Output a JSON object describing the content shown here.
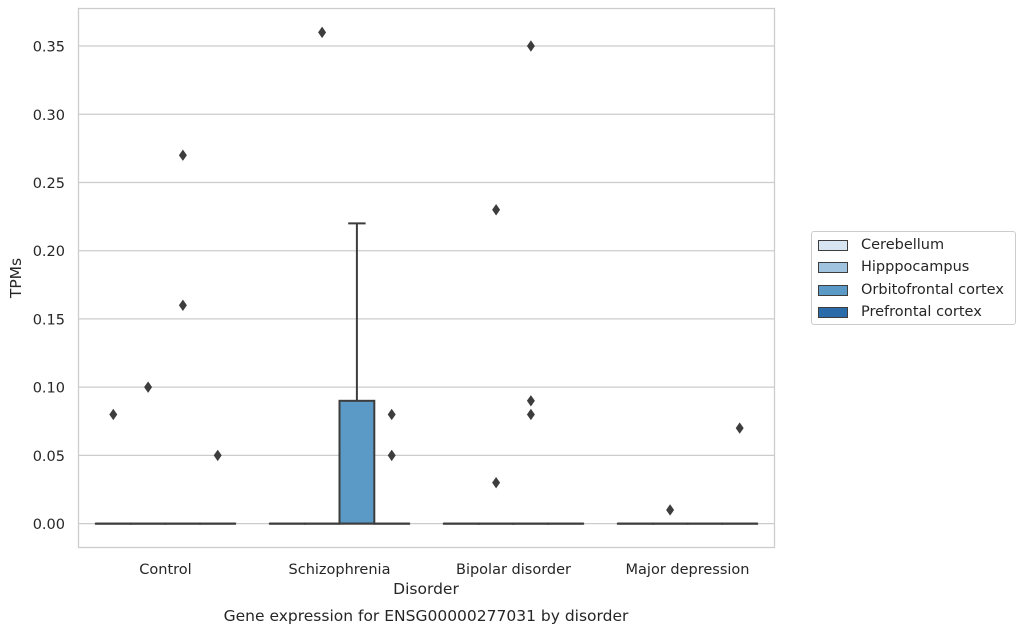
{
  "chart_data": {
    "type": "box",
    "title": "",
    "xlabel": "Disorder",
    "ylabel": "TPMs",
    "caption": "Gene expression for ENSG00000277031 by disorder",
    "categories": [
      "Control",
      "Schizophrenia",
      "Bipolar disorder",
      "Major depression"
    ],
    "ylim": [
      -0.0175,
      0.3775
    ],
    "yticks": [
      0.0,
      0.05,
      0.1,
      0.15,
      0.2,
      0.25,
      0.3,
      0.35
    ],
    "ytick_labels": [
      "0.00",
      "0.05",
      "0.10",
      "0.15",
      "0.20",
      "0.25",
      "0.30",
      "0.35"
    ],
    "grid": true,
    "legend_position": "right",
    "series": [
      {
        "name": "Cerebellum",
        "color": "#d7e5f3",
        "boxes": [
          {
            "category": "Control",
            "q1": 0,
            "median": 0,
            "q3": 0,
            "whisker_low": 0,
            "whisker_high": 0,
            "outliers": [
              0.08
            ]
          },
          {
            "category": "Schizophrenia",
            "q1": 0,
            "median": 0,
            "q3": 0,
            "whisker_low": 0,
            "whisker_high": 0,
            "outliers": []
          },
          {
            "category": "Bipolar disorder",
            "q1": 0,
            "median": 0,
            "q3": 0,
            "whisker_low": 0,
            "whisker_high": 0,
            "outliers": []
          },
          {
            "category": "Major depression",
            "q1": 0,
            "median": 0,
            "q3": 0,
            "whisker_low": 0,
            "whisker_high": 0,
            "outliers": []
          }
        ]
      },
      {
        "name": "Hipppocampus",
        "color": "#a0c4df",
        "boxes": [
          {
            "category": "Control",
            "q1": 0,
            "median": 0,
            "q3": 0,
            "whisker_low": 0,
            "whisker_high": 0,
            "outliers": [
              0.1
            ]
          },
          {
            "category": "Schizophrenia",
            "q1": 0,
            "median": 0,
            "q3": 0,
            "whisker_low": 0,
            "whisker_high": 0,
            "outliers": [
              0.36
            ]
          },
          {
            "category": "Bipolar disorder",
            "q1": 0,
            "median": 0,
            "q3": 0,
            "whisker_low": 0,
            "whisker_high": 0,
            "outliers": [
              0.23,
              0.03
            ]
          },
          {
            "category": "Major depression",
            "q1": 0,
            "median": 0,
            "q3": 0,
            "whisker_low": 0,
            "whisker_high": 0,
            "outliers": [
              0.01
            ]
          }
        ]
      },
      {
        "name": "Orbitofrontal cortex",
        "color": "#5b9ac6",
        "boxes": [
          {
            "category": "Control",
            "q1": 0,
            "median": 0,
            "q3": 0,
            "whisker_low": 0,
            "whisker_high": 0,
            "outliers": [
              0.27,
              0.16
            ]
          },
          {
            "category": "Schizophrenia",
            "q1": 0,
            "median": 0,
            "q3": 0.09,
            "whisker_low": 0,
            "whisker_high": 0.22,
            "outliers": []
          },
          {
            "category": "Bipolar disorder",
            "q1": 0,
            "median": 0,
            "q3": 0,
            "whisker_low": 0,
            "whisker_high": 0,
            "outliers": [
              0.35,
              0.09,
              0.08
            ]
          },
          {
            "category": "Major depression",
            "q1": 0,
            "median": 0,
            "q3": 0,
            "whisker_low": 0,
            "whisker_high": 0,
            "outliers": []
          }
        ]
      },
      {
        "name": "Prefrontal cortex",
        "color": "#2a6ba9",
        "boxes": [
          {
            "category": "Control",
            "q1": 0,
            "median": 0,
            "q3": 0,
            "whisker_low": 0,
            "whisker_high": 0,
            "outliers": [
              0.05
            ]
          },
          {
            "category": "Schizophrenia",
            "q1": 0,
            "median": 0,
            "q3": 0,
            "whisker_low": 0,
            "whisker_high": 0,
            "outliers": [
              0.08,
              0.05
            ]
          },
          {
            "category": "Bipolar disorder",
            "q1": 0,
            "median": 0,
            "q3": 0,
            "whisker_low": 0,
            "whisker_high": 0,
            "outliers": []
          },
          {
            "category": "Major depression",
            "q1": 0,
            "median": 0,
            "q3": 0,
            "whisker_low": 0,
            "whisker_high": 0,
            "outliers": [
              0.07
            ]
          }
        ]
      }
    ]
  }
}
